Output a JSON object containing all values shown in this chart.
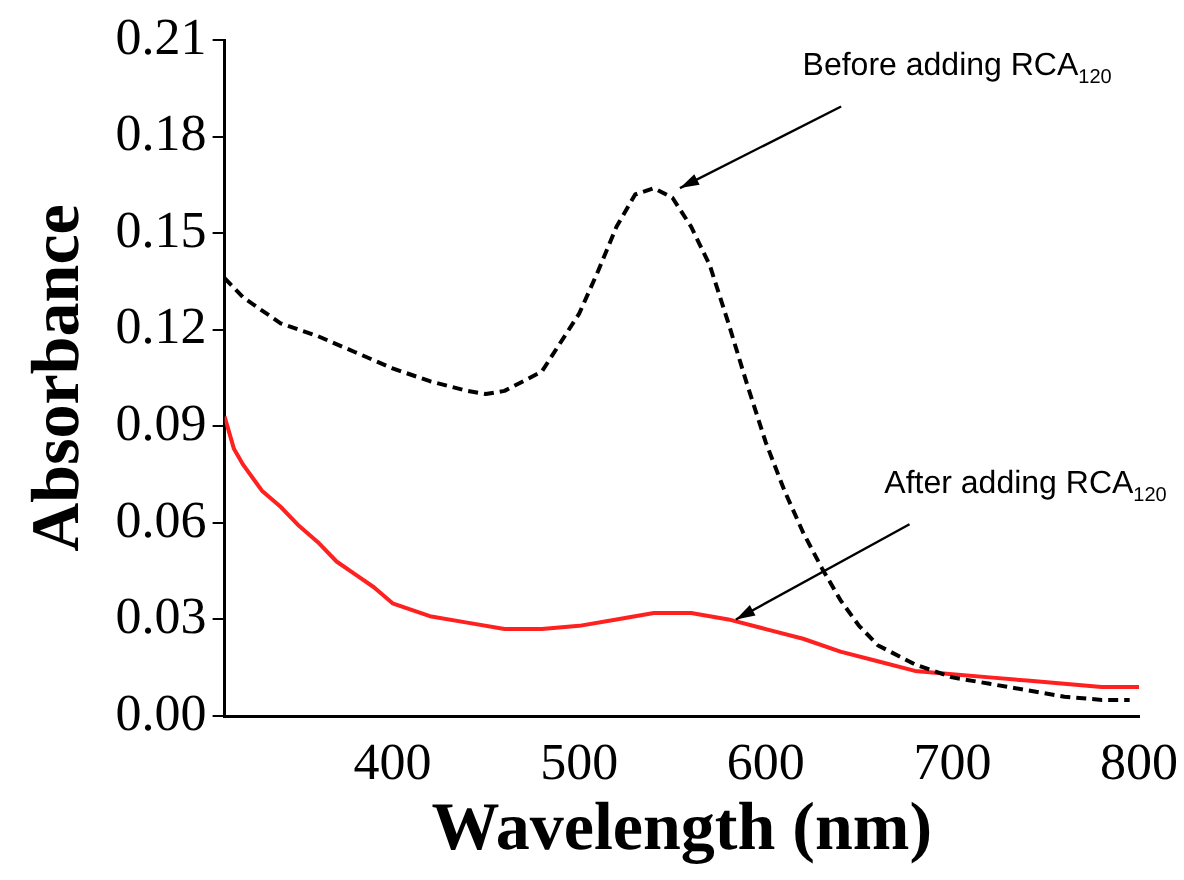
{
  "chart_data": {
    "type": "line",
    "xlabel": "Wavelength (nm)",
    "ylabel": "Absorbance",
    "xlim": [
      310,
      800
    ],
    "xticks": [
      400,
      500,
      600,
      700,
      800
    ],
    "ylim": [
      0,
      0.21
    ],
    "yticks": [
      {
        "value": 0,
        "label": "0.00"
      },
      {
        "value": 0.03,
        "label": "0.03"
      },
      {
        "value": 0.06,
        "label": "0.06"
      },
      {
        "value": 0.09,
        "label": "0.09"
      },
      {
        "value": 0.12,
        "label": "0.12"
      },
      {
        "value": 0.15,
        "label": "0.15"
      },
      {
        "value": 0.18,
        "label": "0.18"
      },
      {
        "value": 0.21,
        "label": "0.21"
      }
    ],
    "grid": false,
    "legend": false,
    "marker": "none",
    "annotations": [
      {
        "text": "Before adding RCA$_{120}$",
        "x": 554,
        "y": 0.164
      },
      {
        "text": "After adding RCA$_{120}$",
        "x": 584,
        "y": 0.03
      }
    ],
    "series": [
      {
        "color": "#000000",
        "line_style": "dashed",
        "x": [
          310,
          320,
          340,
          360,
          380,
          400,
          420,
          440,
          450,
          460,
          480,
          500,
          510,
          520,
          530,
          540,
          550,
          560,
          570,
          580,
          590,
          600,
          610,
          620,
          630,
          640,
          650,
          660,
          680,
          700,
          720,
          740,
          760,
          780,
          795
        ],
        "values": [
          0.136,
          0.13,
          0.122,
          0.118,
          0.113,
          0.108,
          0.104,
          0.101,
          0.1,
          0.101,
          0.107,
          0.125,
          0.138,
          0.152,
          0.162,
          0.164,
          0.161,
          0.152,
          0.14,
          0.122,
          0.103,
          0.085,
          0.07,
          0.057,
          0.046,
          0.036,
          0.028,
          0.022,
          0.016,
          0.012,
          0.01,
          0.008,
          0.006,
          0.005,
          0.005
        ]
      },
      {
        "color": "#ff2020",
        "line_style": "solid",
        "x": [
          310,
          315,
          320,
          330,
          340,
          350,
          360,
          370,
          380,
          390,
          400,
          420,
          440,
          460,
          480,
          500,
          520,
          540,
          560,
          580,
          600,
          620,
          640,
          660,
          680,
          700,
          720,
          740,
          760,
          780,
          800
        ],
        "values": [
          0.093,
          0.083,
          0.078,
          0.07,
          0.065,
          0.059,
          0.054,
          0.048,
          0.044,
          0.04,
          0.035,
          0.031,
          0.029,
          0.027,
          0.027,
          0.028,
          0.03,
          0.032,
          0.032,
          0.03,
          0.027,
          0.024,
          0.02,
          0.017,
          0.014,
          0.013,
          0.012,
          0.011,
          0.01,
          0.009,
          0.009
        ]
      }
    ]
  }
}
